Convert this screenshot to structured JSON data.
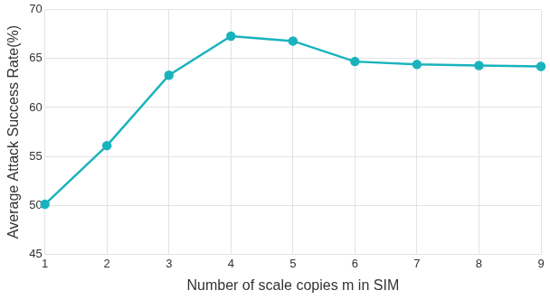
{
  "chart_data": {
    "type": "line",
    "x_label": "Number of scale copies m in SIM",
    "y_label": "Average Attack Success Rate(%)",
    "x": [
      1,
      2,
      3,
      4,
      5,
      6,
      7,
      8,
      9
    ],
    "values": [
      50.1,
      56.1,
      63.3,
      67.3,
      66.8,
      64.7,
      64.4,
      64.3,
      64.2
    ],
    "color": "#1ab3bd",
    "marker": "circle",
    "xlim": [
      1,
      9
    ],
    "xticks": [
      1,
      2,
      3,
      4,
      5,
      6,
      7,
      8,
      9
    ],
    "ylim": [
      45,
      70
    ],
    "yticks": [
      45,
      50,
      55,
      60,
      65,
      70
    ],
    "grid": true
  }
}
